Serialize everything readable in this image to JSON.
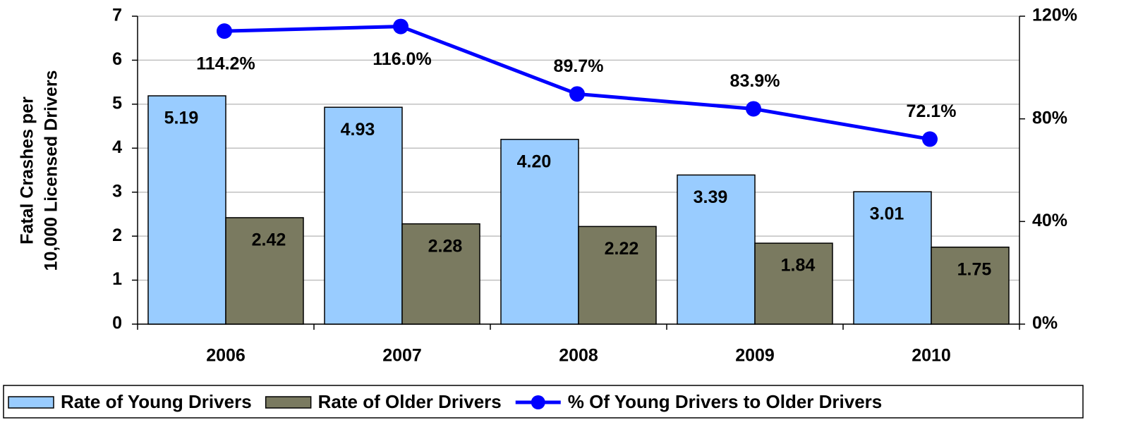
{
  "chart_data": {
    "type": "bar",
    "ylabel": [
      "Fatal Crashes per",
      "10,000 Licensed Drivers"
    ],
    "categories": [
      "2006",
      "2007",
      "2008",
      "2009",
      "2010"
    ],
    "series": [
      {
        "name": "Rate of Young Drivers",
        "type": "bar",
        "color": "#99ccff",
        "values": [
          5.19,
          4.93,
          4.2,
          3.39,
          3.01
        ],
        "value_labels": [
          "5.19",
          "4.93",
          "4.20",
          "3.39",
          "3.01"
        ]
      },
      {
        "name": "Rate of Older Drivers",
        "type": "bar",
        "color": "#7a7a60",
        "values": [
          2.42,
          2.28,
          2.22,
          1.84,
          1.75
        ],
        "value_labels": [
          "2.42",
          "2.28",
          "2.22",
          "1.84",
          "1.75"
        ]
      },
      {
        "name": "% Of Young Drivers to Older Drivers",
        "type": "line",
        "axis": "y2",
        "color": "#0000ff",
        "values": [
          114.2,
          116.0,
          89.7,
          83.9,
          72.1
        ],
        "value_labels": [
          "114.2%",
          "116.0%",
          "89.7%",
          "83.9%",
          "72.1%"
        ]
      }
    ],
    "ylim": [
      0,
      7
    ],
    "yticks": [
      0,
      1,
      2,
      3,
      4,
      5,
      6,
      7
    ],
    "y2lim": [
      0,
      120
    ],
    "y2ticks": [
      {
        "value": 0,
        "label": "0%"
      },
      {
        "value": 40,
        "label": "40%"
      },
      {
        "value": 80,
        "label": "80%"
      },
      {
        "value": 120,
        "label": "120%"
      }
    ],
    "grid": true,
    "legend": "bottom"
  }
}
